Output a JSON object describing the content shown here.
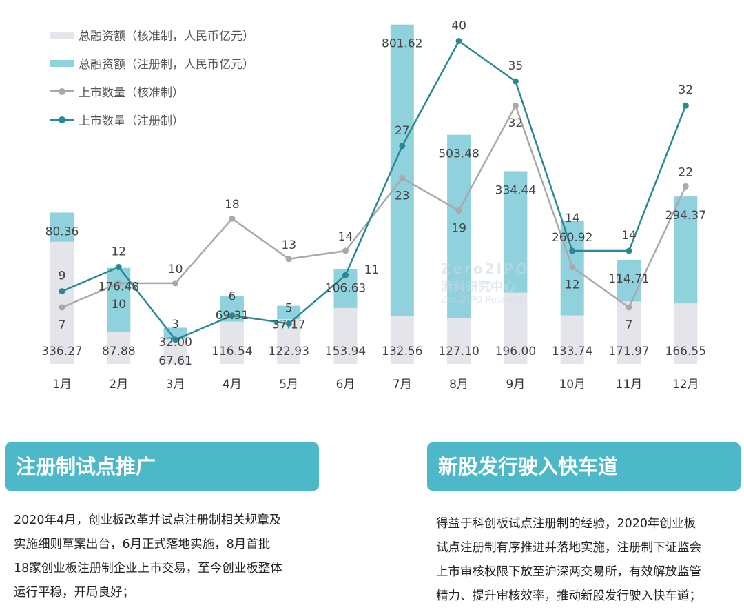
{
  "chart_data": {
    "type": "bar+line",
    "categories": [
      "1月",
      "2月",
      "3月",
      "4月",
      "5月",
      "6月",
      "7月",
      "8月",
      "9月",
      "10月",
      "11月",
      "12月"
    ],
    "series": [
      {
        "name": "总融资额（核准制，人民币亿元）",
        "kind": "stacked-bar",
        "axis": "left",
        "color": "#e3e5eb",
        "values": [
          336.27,
          87.88,
          67.61,
          116.54,
          122.93,
          153.94,
          132.56,
          127.1,
          196.0,
          133.74,
          171.97,
          166.55
        ]
      },
      {
        "name": "总融资额（注册制，人民币亿元）",
        "kind": "stacked-bar",
        "axis": "left",
        "color": "#8fd1dc",
        "values": [
          80.36,
          176.48,
          32.0,
          69.31,
          37.17,
          106.63,
          801.62,
          503.48,
          334.44,
          260.92,
          114.71,
          294.37
        ]
      },
      {
        "name": "上市数量（核准制）",
        "kind": "line",
        "axis": "right",
        "color": "#a9a9a9",
        "values": [
          7,
          10,
          10,
          18,
          13,
          14,
          23,
          19,
          32,
          12,
          7,
          22
        ]
      },
      {
        "name": "上市数量（注册制）",
        "kind": "line",
        "axis": "right",
        "color": "#268a93",
        "values": [
          9,
          12,
          3,
          6,
          5,
          11,
          27,
          40,
          35,
          14,
          14,
          32
        ]
      }
    ],
    "ylim_left": [
      0,
      1000
    ],
    "ylim_right": [
      0,
      45
    ],
    "grid": false,
    "legend": "top-left"
  },
  "panels": [
    {
      "title": "注册制试点推广",
      "lines": [
        "2020年4月，创业板改革并试点注册制相关规章及",
        "实施细则草案出台，6月正式落地实施，8月首批",
        "18家创业板注册制企业上市交易，至今创业板整体",
        "运行平稳，开局良好；"
      ]
    },
    {
      "title": "新股发行驶入快车道",
      "lines": [
        "得益于科创板试点注册制的经验，2020年创业板",
        "试点注册制有序推进并落地实施，注册制下证监会",
        "上市审核权限下放至沪深两交易所，有效解放监管",
        "精力、提升审核效率，推动新股发行驶入快车道；"
      ]
    }
  ],
  "watermark": {
    "logo": "Zero2IPO",
    "cn": "清科研究中心",
    "en": "Zero2IPO Research"
  },
  "colors": {
    "panel_header": "#4db8c8"
  }
}
